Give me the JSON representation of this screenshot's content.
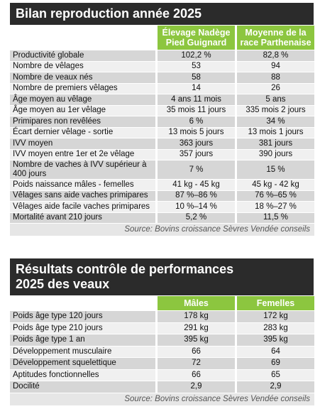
{
  "table1": {
    "title": "Bilan reproduction année 2025",
    "columns": [
      "Élevage Nadège Pied Guignard",
      "Moyenne de la race Parthenaise"
    ],
    "rows": [
      [
        "Productivité globale",
        "102,2 %",
        "82,8 %"
      ],
      [
        "Nombre de vêlages",
        "53",
        "94"
      ],
      [
        "Nombre de veaux nés",
        "58",
        "88"
      ],
      [
        "Nombre de premiers vêlages",
        "14",
        "26"
      ],
      [
        "Âge moyen au vêlage",
        "4 ans 11 mois",
        "5 ans"
      ],
      [
        "Âge moyen au 1er vêlage",
        "35 mois 11 jours",
        "335 mois 2 jours"
      ],
      [
        "Primipares non revêlées",
        "6 %",
        "34 %"
      ],
      [
        "Écart dernier vêlage - sortie",
        "13 mois 5 jours",
        "13 mois 1 jours"
      ],
      [
        "IVV moyen",
        "363 jours",
        "381 jours"
      ],
      [
        "IVV moyen entre 1er et 2e vêlage",
        "357 jours",
        "390 jours"
      ],
      [
        "Nombre de vaches à IVV supérieur à 400 jours",
        "7 %",
        "15 %"
      ],
      [
        "Poids naissance mâles - femelles",
        "41 kg - 45 kg",
        "45 kg - 42 kg"
      ],
      [
        "Vêlages sans aide vaches primipares",
        "87 %–86 %",
        "76 %–65 %"
      ],
      [
        "Vêlages aide facile vaches primipares",
        "10 %–14 %",
        "18 %–27 %"
      ],
      [
        "Mortalité avant 210 jours",
        "5,2 %",
        "11,5 %"
      ]
    ],
    "source": "Source: Bovins croissance Sèvres Vendée conseils"
  },
  "table2": {
    "title": "Résultats contrôle de performances 2025 des veaux",
    "columns": [
      "Mâles",
      "Femelles"
    ],
    "rows": [
      [
        "Poids âge type 120 jours",
        "178 kg",
        "172 kg"
      ],
      [
        "Poids âge type 210 jours",
        "291 kg",
        "283 kg"
      ],
      [
        "Poids âge type 1 an",
        "395 kg",
        "395 kg"
      ],
      [
        "Développement musculaire",
        "66",
        "64"
      ],
      [
        "Développement squelettique",
        "72",
        "69"
      ],
      [
        "Aptitudes fonctionnelles",
        "66",
        "65"
      ],
      [
        "Docilité",
        "2,9",
        "2,9"
      ]
    ],
    "source": "Source: Bovins croissance Sèvres Vendée conseils"
  }
}
